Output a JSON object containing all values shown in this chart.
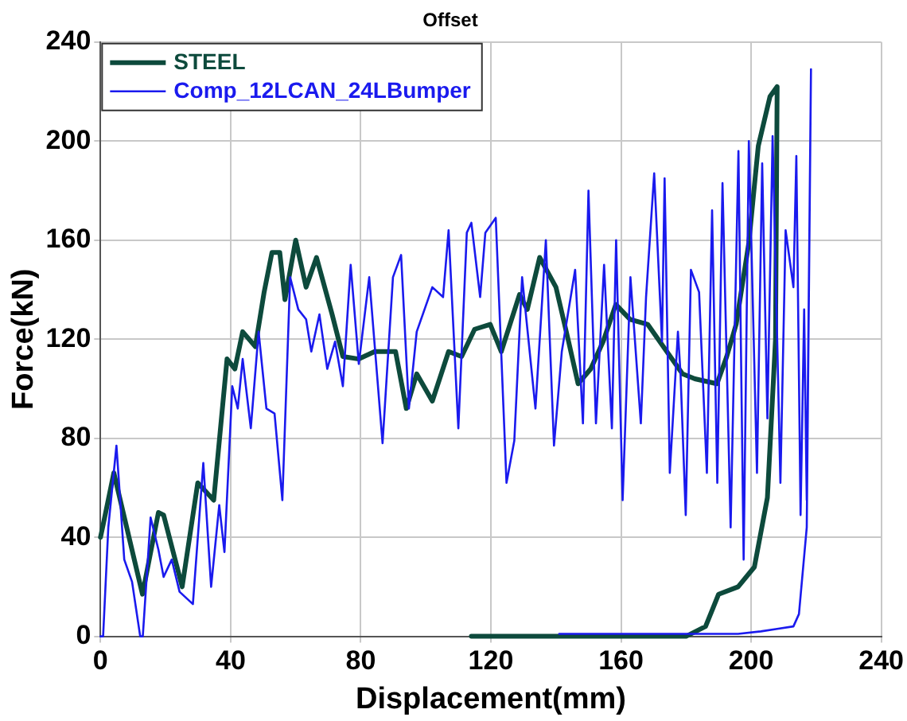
{
  "chart_data": {
    "type": "line",
    "title": "Offset",
    "xlabel": "Displacement(mm)",
    "ylabel": "Force(kN)",
    "xlim": [
      0,
      240
    ],
    "xticks": [
      0,
      40,
      80,
      120,
      160,
      200,
      240
    ],
    "ylim": [
      0,
      240
    ],
    "yticks": [
      0,
      40,
      80,
      120,
      160,
      200,
      240
    ],
    "grid": true,
    "legend": "top left",
    "marker": "none",
    "line_style": "solid",
    "series": [
      {
        "name": "STEEL",
        "color": "#0d4a3c",
        "x": [
          0,
          0.8,
          4.1,
          12.9,
          17.8,
          19.4,
          25.1,
          29.9,
          34.8,
          38.9,
          41.3,
          43.7,
          47.6,
          50.3,
          52.7,
          55.1,
          56.7,
          60,
          63.2,
          66.4,
          71.2,
          74.5,
          79.4,
          84.3,
          90.7,
          94,
          97.2,
          102,
          107,
          111,
          115,
          119.8,
          123.2,
          128.8,
          131.2,
          135,
          140,
          143.9,
          146.8,
          150.7,
          154.5,
          158.4,
          162.8,
          168.2,
          173,
          178.9,
          182.7,
          189.5,
          192.5,
          195.4,
          199.3,
          202.2,
          205.8,
          208,
          207.5,
          205,
          201,
          196,
          190,
          186,
          180,
          114
        ],
        "values": [
          40,
          45,
          66,
          17,
          50,
          49,
          20,
          62,
          55,
          112,
          108,
          123,
          117,
          139,
          155,
          155,
          136,
          160,
          141,
          153,
          130,
          113,
          112,
          115,
          115,
          92,
          106,
          95,
          115,
          113,
          124,
          126,
          115,
          138,
          132,
          153,
          141,
          119,
          102,
          108,
          119,
          134,
          128,
          126,
          117,
          106,
          104,
          102,
          113,
          126,
          159,
          198,
          218,
          222,
          120,
          56,
          28,
          20,
          17,
          4,
          0,
          0
        ]
      },
      {
        "name": "Comp_12LCAN_24LBumper",
        "color": "#1a1aee",
        "x": [
          0,
          0.8,
          2.4,
          4.9,
          7.3,
          9.7,
          12.2,
          13,
          15.4,
          17.8,
          19.4,
          21.9,
          24.3,
          28.4,
          31.6,
          34,
          36.5,
          38.1,
          40.5,
          42.2,
          43.7,
          46.2,
          48.6,
          51,
          53.5,
          55.9,
          58.3,
          60.8,
          63.2,
          64.8,
          67.3,
          69.7,
          72.1,
          74.5,
          76.9,
          79.4,
          82.6,
          86.7,
          89.9,
          92.4,
          94.8,
          97.2,
          102,
          105.3,
          107,
          110,
          112.6,
          114,
          116.7,
          118.3,
          121.5,
          124.8,
          127.2,
          129.6,
          133.7,
          136.9,
          139.4,
          141.8,
          145.9,
          148.3,
          150,
          152.3,
          154.8,
          157.2,
          158.5,
          160.5,
          162.9,
          166.1,
          167.7,
          170.2,
          172.6,
          173.4,
          175,
          177.5,
          178.3,
          179.9,
          181.5,
          184,
          186.4,
          188,
          189.6,
          191.2,
          193.7,
          196.1,
          197.7,
          199.3,
          201.8,
          203.4,
          205,
          206.6,
          209,
          210.6,
          213,
          213.9,
          215.2,
          216.3,
          217.1,
          218.4,
          217.1,
          214.7,
          213,
          208,
          203,
          196,
          185,
          141
        ],
        "values": [
          0,
          0,
          44,
          77,
          31,
          22,
          0,
          0,
          48,
          35,
          24,
          31,
          18,
          13,
          70,
          20,
          53,
          34,
          101,
          92,
          112,
          84,
          123,
          92,
          90,
          55,
          145,
          132,
          128,
          115,
          130,
          108,
          119,
          101,
          150,
          110,
          145,
          78,
          145,
          154,
          92,
          123,
          141,
          137,
          164,
          84,
          163,
          167,
          137,
          163,
          169,
          62,
          79,
          145,
          92,
          160,
          77,
          115,
          148,
          86,
          180,
          86,
          150,
          84,
          160,
          55,
          145,
          86,
          137,
          187,
          119,
          185,
          66,
          123,
          106,
          49,
          148,
          139,
          66,
          172,
          62,
          183,
          44,
          196,
          31,
          200,
          66,
          191,
          88,
          202,
          62,
          164,
          141,
          194,
          49,
          132,
          55,
          229,
          44,
          9,
          4,
          3,
          2,
          1,
          1,
          1
        ]
      }
    ]
  }
}
